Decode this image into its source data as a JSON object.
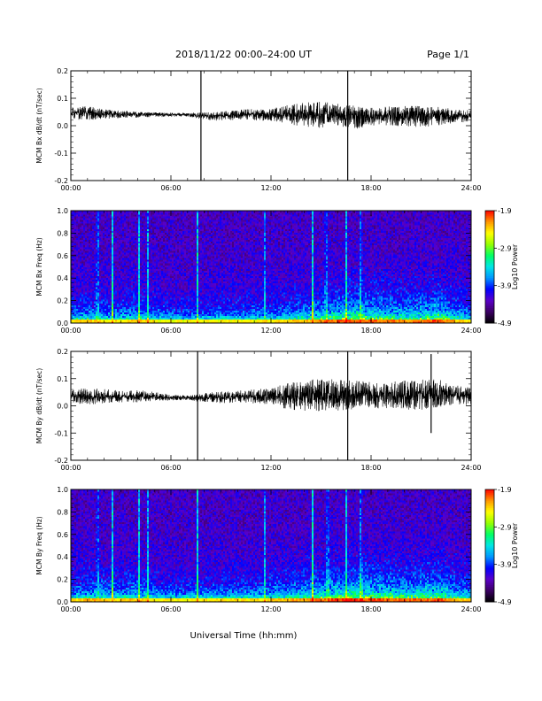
{
  "header": {
    "date_range": "2018/11/22  00:00–24:00 UT",
    "page": "Page 1/1"
  },
  "xaxis_title": "Universal Time (hh:mm)",
  "chart_data": [
    {
      "type": "line",
      "ylabel": "MCM Bx dB/dt (nT/sec)",
      "xlim": [
        0,
        24
      ],
      "ylim": [
        -0.2,
        0.2
      ],
      "x_ticks": [
        "00:00",
        "06:00",
        "12:00",
        "18:00",
        "24:00"
      ],
      "y_ticks": [
        "-0.2",
        "-0.1",
        "0.0",
        "0.1",
        "0.2"
      ],
      "series_color": "#000000",
      "profile": {
        "hours": [
          0,
          1,
          2,
          3,
          4,
          5,
          6,
          7,
          8,
          9,
          10,
          11,
          12,
          13,
          14,
          15,
          16,
          17,
          18,
          19,
          20,
          21,
          22,
          23,
          24
        ],
        "mean": [
          0.045,
          0.045,
          0.042,
          0.042,
          0.04,
          0.04,
          0.04,
          0.04,
          0.035,
          0.035,
          0.04,
          0.04,
          0.04,
          0.04,
          0.04,
          0.04,
          0.04,
          0.03,
          0.035,
          0.035,
          0.035,
          0.035,
          0.035,
          0.035,
          0.035
        ],
        "amplitude": [
          0.03,
          0.03,
          0.02,
          0.015,
          0.012,
          0.01,
          0.008,
          0.008,
          0.015,
          0.02,
          0.02,
          0.025,
          0.025,
          0.04,
          0.05,
          0.055,
          0.045,
          0.05,
          0.04,
          0.04,
          0.045,
          0.045,
          0.04,
          0.03,
          0.025
        ]
      },
      "spikes": [
        {
          "time": 7.8,
          "ymin": -0.2,
          "ymax": 0.2
        },
        {
          "time": 16.6,
          "ymin": -0.2,
          "ymax": 0.2
        }
      ]
    },
    {
      "type": "heatmap",
      "ylabel": "MCM Bx Freq (Hz)",
      "xlim": [
        0,
        24
      ],
      "ylim": [
        0.0,
        1.0
      ],
      "x_ticks": [
        "00:00",
        "06:00",
        "12:00",
        "18:00",
        "24:00"
      ],
      "y_ticks": [
        "0.0",
        "0.2",
        "0.4",
        "0.6",
        "0.8",
        "1.0"
      ],
      "colorbar": {
        "label": "Log10 Power",
        "range": [
          -4.9,
          -1.9
        ],
        "tick_labels": [
          "-1.9",
          "-2.9",
          "-3.9",
          "-4.9"
        ],
        "colors": [
          "#000000",
          "#3c0064",
          "#5a00c8",
          "#0000ff",
          "#0096ff",
          "#00e6e6",
          "#00ff64",
          "#96ff00",
          "#ffff00",
          "#ff9600",
          "#ff0000"
        ]
      },
      "activity": [
        0.35,
        0.45,
        0.4,
        0.4,
        0.45,
        0.35,
        0.3,
        0.3,
        0.3,
        0.35,
        0.35,
        0.35,
        0.4,
        0.45,
        0.5,
        0.6,
        0.7,
        0.75,
        0.7,
        0.65,
        0.6,
        0.65,
        0.75,
        0.5,
        0.4
      ],
      "vertical_stripes": [
        1.6,
        2.5,
        4.1,
        4.6,
        7.6,
        11.6,
        14.5,
        15.3,
        16.5,
        17.4
      ],
      "seed": 11
    },
    {
      "type": "line",
      "ylabel": "MCM By dB/dt (nT/sec)",
      "xlim": [
        0,
        24
      ],
      "ylim": [
        -0.2,
        0.2
      ],
      "x_ticks": [
        "00:00",
        "06:00",
        "12:00",
        "18:00",
        "24:00"
      ],
      "y_ticks": [
        "-0.2",
        "-0.1",
        "0.0",
        "0.1",
        "0.2"
      ],
      "series_color": "#000000",
      "profile": {
        "hours": [
          0,
          1,
          2,
          3,
          4,
          5,
          6,
          7,
          8,
          9,
          10,
          11,
          12,
          13,
          14,
          15,
          16,
          17,
          18,
          19,
          20,
          21,
          22,
          23,
          24
        ],
        "mean": [
          0.035,
          0.035,
          0.035,
          0.035,
          0.035,
          0.035,
          0.03,
          0.03,
          0.03,
          0.03,
          0.035,
          0.035,
          0.035,
          0.035,
          0.035,
          0.04,
          0.04,
          0.04,
          0.04,
          0.04,
          0.04,
          0.04,
          0.045,
          0.04,
          0.035
        ],
        "amplitude": [
          0.03,
          0.035,
          0.03,
          0.025,
          0.025,
          0.02,
          0.012,
          0.01,
          0.02,
          0.025,
          0.025,
          0.03,
          0.035,
          0.055,
          0.065,
          0.07,
          0.065,
          0.06,
          0.06,
          0.055,
          0.06,
          0.065,
          0.06,
          0.045,
          0.035
        ]
      },
      "spikes": [
        {
          "time": 7.6,
          "ymin": -0.2,
          "ymax": 0.2
        },
        {
          "time": 16.6,
          "ymin": -0.2,
          "ymax": 0.2
        },
        {
          "time": 21.6,
          "ymin": -0.1,
          "ymax": 0.19
        }
      ]
    },
    {
      "type": "heatmap",
      "ylabel": "MCM By Freq (Hz)",
      "xlim": [
        0,
        24
      ],
      "ylim": [
        0.0,
        1.0
      ],
      "x_ticks": [
        "00:00",
        "06:00",
        "12:00",
        "18:00",
        "24:00"
      ],
      "y_ticks": [
        "0.0",
        "0.2",
        "0.4",
        "0.6",
        "0.8",
        "1.0"
      ],
      "colorbar": {
        "label": "Log10 Power",
        "range": [
          -4.9,
          -1.9
        ],
        "tick_labels": [
          "-1.9",
          "-2.9",
          "-3.9",
          "-4.9"
        ],
        "colors": [
          "#000000",
          "#3c0064",
          "#5a00c8",
          "#0000ff",
          "#0096ff",
          "#00e6e6",
          "#00ff64",
          "#96ff00",
          "#ffff00",
          "#ff9600",
          "#ff0000"
        ]
      },
      "activity": [
        0.4,
        0.5,
        0.45,
        0.45,
        0.5,
        0.4,
        0.35,
        0.35,
        0.35,
        0.4,
        0.4,
        0.4,
        0.45,
        0.5,
        0.6,
        0.65,
        0.75,
        0.8,
        0.75,
        0.7,
        0.65,
        0.7,
        0.75,
        0.55,
        0.45
      ],
      "vertical_stripes": [
        1.6,
        2.5,
        4.1,
        4.6,
        7.6,
        11.6,
        14.5,
        15.4,
        16.5,
        17.4
      ],
      "seed": 23
    }
  ]
}
